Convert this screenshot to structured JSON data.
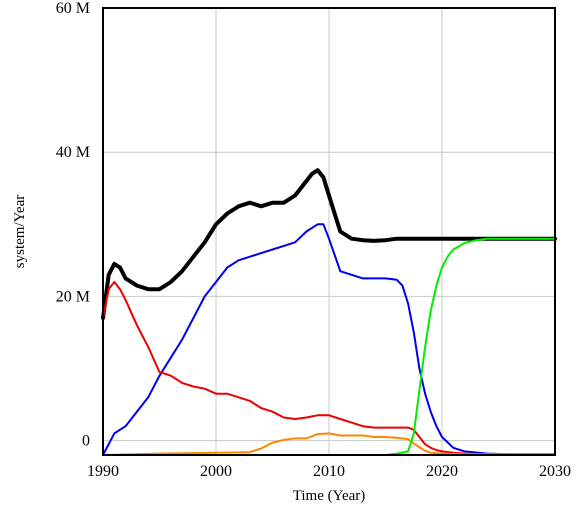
{
  "chart_data": {
    "type": "line",
    "xlabel": "Time (Year)",
    "ylabel": "system/Year",
    "xlim": [
      1990,
      2030
    ],
    "ylim": [
      -2,
      60
    ],
    "grid": true,
    "legend": "none",
    "x_ticks": [
      "1990",
      "2000",
      "2010",
      "2020",
      "2030"
    ],
    "y_ticks": [
      {
        "value": 60,
        "label": "60 M"
      },
      {
        "value": 40,
        "label": "40 M"
      },
      {
        "value": 20,
        "label": "20 M"
      },
      {
        "value": 0,
        "label": "0"
      }
    ],
    "series": [
      {
        "color": "#000000",
        "stroke_width": 4,
        "x": [
          1990,
          1990.5,
          1991,
          1991.5,
          1992,
          1993,
          1994,
          1995,
          1996,
          1997,
          1998,
          1999,
          2000,
          2001,
          2002,
          2003,
          2004,
          2005,
          2006,
          2007,
          2008,
          2008.5,
          2009,
          2009.5,
          2010,
          2010.5,
          2011,
          2012,
          2013,
          2014,
          2015,
          2016,
          2017,
          2018,
          2019,
          2020,
          2022,
          2024,
          2026,
          2028,
          2030
        ],
        "y": [
          17,
          23,
          24.5,
          24,
          22.5,
          21.5,
          21,
          21,
          22,
          23.5,
          25.5,
          27.5,
          30,
          31.5,
          32.5,
          33,
          32.5,
          33,
          33,
          34,
          36,
          37,
          37.5,
          36.5,
          34,
          31.5,
          29,
          28,
          27.8,
          27.7,
          27.8,
          28,
          28,
          28,
          28,
          28,
          28,
          28,
          28,
          28,
          28
        ]
      },
      {
        "color": "#0000ee",
        "stroke_width": 2,
        "x": [
          1990,
          1990.5,
          1991,
          1992,
          1993,
          1994,
          1995,
          1996,
          1997,
          1998,
          1999,
          2000,
          2001,
          2002,
          2003,
          2004,
          2005,
          2006,
          2007,
          2008,
          2009,
          2009.5,
          2010,
          2011,
          2012,
          2013,
          2014,
          2015,
          2016,
          2016.5,
          2017,
          2017.5,
          2018,
          2018.5,
          2019,
          2019.5,
          2020,
          2021,
          2022,
          2024,
          2026,
          2030
        ],
        "y": [
          -2,
          -0.5,
          1,
          2,
          4,
          6,
          9,
          11.5,
          14,
          17,
          20,
          22,
          24,
          25,
          25.5,
          26,
          26.5,
          27,
          27.5,
          29,
          30,
          30,
          28,
          23.5,
          23,
          22.5,
          22.5,
          22.5,
          22.3,
          21.5,
          19,
          15,
          10,
          6.5,
          4,
          2,
          0.5,
          -1,
          -1.5,
          -1.8,
          -1.9,
          -1.9
        ]
      },
      {
        "color": "#ee0000",
        "stroke_width": 2,
        "x": [
          1990,
          1990.5,
          1991,
          1991.5,
          1992,
          1993,
          1994,
          1995,
          1996,
          1997,
          1998,
          1999,
          2000,
          2001,
          2002,
          2003,
          2004,
          2005,
          2006,
          2007,
          2008,
          2009,
          2010,
          2011,
          2012,
          2013,
          2014,
          2015,
          2016,
          2017,
          2017.5,
          2018,
          2018.5,
          2019,
          2019.5,
          2020,
          2021,
          2022,
          2024,
          2026,
          2030
        ],
        "y": [
          17,
          21,
          22,
          21,
          19.5,
          16,
          13,
          9.5,
          9,
          8,
          7.5,
          7.2,
          6.5,
          6.5,
          6,
          5.5,
          4.5,
          4,
          3.2,
          3,
          3.2,
          3.5,
          3.5,
          3,
          2.5,
          2,
          1.8,
          1.8,
          1.8,
          1.8,
          1.5,
          0.5,
          -0.5,
          -1,
          -1.3,
          -1.5,
          -1.7,
          -1.8,
          -1.9,
          -1.9,
          -1.9
        ]
      },
      {
        "color": "#ff8800",
        "stroke_width": 2,
        "x": [
          1990,
          1995,
          2000,
          2003,
          2004,
          2005,
          2006,
          2007,
          2008,
          2009,
          2010,
          2011,
          2012,
          2013,
          2014,
          2015,
          2016,
          2017,
          2017.5,
          2018,
          2018.5,
          2019,
          2020,
          2022,
          2030
        ],
        "y": [
          -2,
          -1.8,
          -1.7,
          -1.6,
          -1.1,
          -0.3,
          0.1,
          0.3,
          0.3,
          0.9,
          1,
          0.7,
          0.7,
          0.7,
          0.5,
          0.5,
          0.4,
          0.2,
          -0.4,
          -0.9,
          -1.4,
          -1.7,
          -1.8,
          -1.9,
          -1.9
        ]
      },
      {
        "color": "#00ee00",
        "stroke_width": 2,
        "x": [
          1990,
          2010,
          2015,
          2016,
          2017,
          2017.5,
          2018,
          2018.5,
          2019,
          2019.5,
          2020,
          2020.5,
          2021,
          2022,
          2023,
          2024,
          2026,
          2030
        ],
        "y": [
          -2,
          -2,
          -2,
          -1.8,
          -1.5,
          1,
          7,
          13,
          18,
          21.5,
          24,
          25.5,
          26.5,
          27.4,
          27.8,
          28,
          28,
          28
        ]
      }
    ]
  }
}
